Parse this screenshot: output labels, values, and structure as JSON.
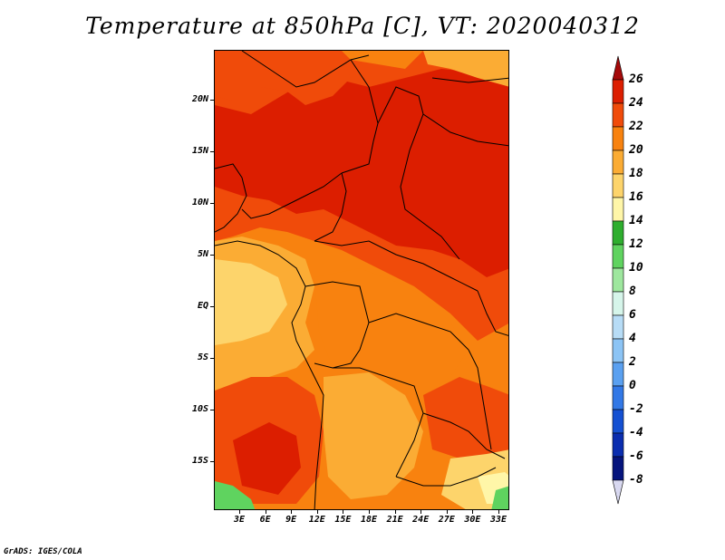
{
  "title": "Temperature at 850hPa [C], VT: 2020040312",
  "credit": "GrADS: IGES/COLA",
  "map": {
    "lat_labels": [
      "20N",
      "15N",
      "10N",
      "5N",
      "EQ",
      "5S",
      "10S",
      "15S"
    ],
    "lon_labels": [
      "3E",
      "6E",
      "9E",
      "12E",
      "15E",
      "18E",
      "21E",
      "24E",
      "27E",
      "30E",
      "33E"
    ]
  },
  "colorbar": {
    "labels": [
      "26",
      "24",
      "22",
      "20",
      "18",
      "16",
      "14",
      "12",
      "10",
      "8",
      "6",
      "4",
      "2",
      "0",
      "-2",
      "-4",
      "-6",
      "-8"
    ],
    "colors": [
      "#a50a0a",
      "#dc1e00",
      "#f04b0a",
      "#f8820f",
      "#fbac34",
      "#fdd46b",
      "#fff6a8",
      "#2eae2e",
      "#5fd35f",
      "#9ee79e",
      "#d6f5ea",
      "#b7dcf6",
      "#8cc4f5",
      "#5aa0f0",
      "#3278e6",
      "#1450d2",
      "#0a2daf",
      "#05147d",
      "#d8d8f0"
    ]
  }
}
